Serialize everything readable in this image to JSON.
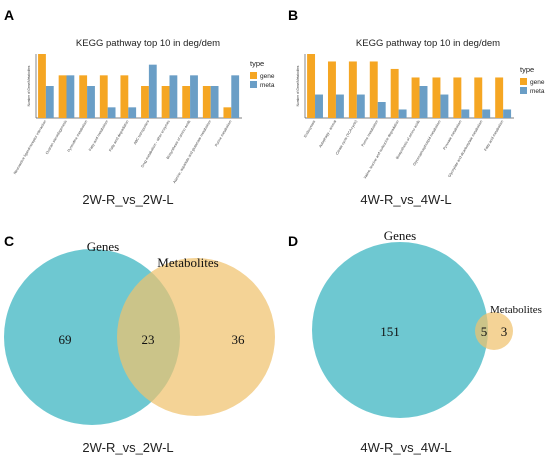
{
  "panels": [
    {
      "letter": "A",
      "chart_data": {
        "type": "bar",
        "title": "KEGG pathway top 10 in deg/dem",
        "ylabel": "Number of Gene/Metabolites",
        "caption": "2W-R_vs_2W-L",
        "legend_title": "type",
        "legend_placement": "right",
        "ylim": [
          0,
          6
        ],
        "categories": [
          "Neuroactive ligand-receptor interaction",
          "Ovarian steroidogenesis",
          "Pyrimidine metabolism",
          "Fatty acid metabolism",
          "Fatty acid degradation",
          "ABC transporters",
          "Drug metabolism - other enzymes",
          "Biosynthesis of amino acids",
          "Alanine, aspartate and glutamate metabolism",
          "Purine metabolism"
        ],
        "series": [
          {
            "name": "gene",
            "color": "#F5A623",
            "values": [
              6,
              4,
              4,
              4,
              4,
              3,
              3,
              3,
              3,
              1
            ]
          },
          {
            "name": "meta",
            "color": "#6A9EC6",
            "values": [
              3,
              4,
              3,
              1,
              1,
              5,
              4,
              4,
              3,
              4
            ]
          }
        ]
      }
    },
    {
      "letter": "B",
      "chart_data": {
        "type": "bar",
        "title": "KEGG pathway top 10 in deg/dem",
        "ylabel": "Number of Gene/Metabolites",
        "caption": "4W-R_vs_4W-L",
        "legend_title": "type",
        "legend_placement": "right",
        "ylim": [
          0,
          6
        ],
        "categories": [
          "Endocytosis",
          "Autophagy - animal",
          "Citrate cycle (TCA cycle)",
          "Purine metabolism",
          "Valine, leucine and isoleucine degradation",
          "Biosynthesis of amino acids",
          "Glycerophospholipid metabolism",
          "Pyruvate metabolism",
          "Glyoxylate and dicarboxylate metabolism",
          "Fatty acid metabolism"
        ],
        "series": [
          {
            "name": "gene",
            "color": "#F5A623",
            "values": [
              6,
              5.3,
              5.3,
              5.3,
              4.6,
              3.8,
              3.8,
              3.8,
              3.8,
              3.8
            ]
          },
          {
            "name": "meta",
            "color": "#6A9EC6",
            "values": [
              2.2,
              2.2,
              2.2,
              1.5,
              0.8,
              3,
              2.2,
              0.8,
              0.8,
              0.8
            ]
          }
        ]
      }
    }
  ],
  "venns": [
    {
      "letter": "C",
      "set_a": "Genes",
      "set_b": "Metabolites",
      "only_a": 69,
      "shared": 23,
      "only_b": 36,
      "caption": "2W-R_vs_2W-L",
      "color_a": "#5EC2CC",
      "color_b": "#F0C26E"
    },
    {
      "letter": "D",
      "set_a": "Genes",
      "set_b": "Metabolites",
      "only_a": 151,
      "shared": 5,
      "only_b": 3,
      "caption": "4W-R_vs_4W-L",
      "color_a": "#5EC2CC",
      "color_b": "#F0C26E"
    }
  ]
}
